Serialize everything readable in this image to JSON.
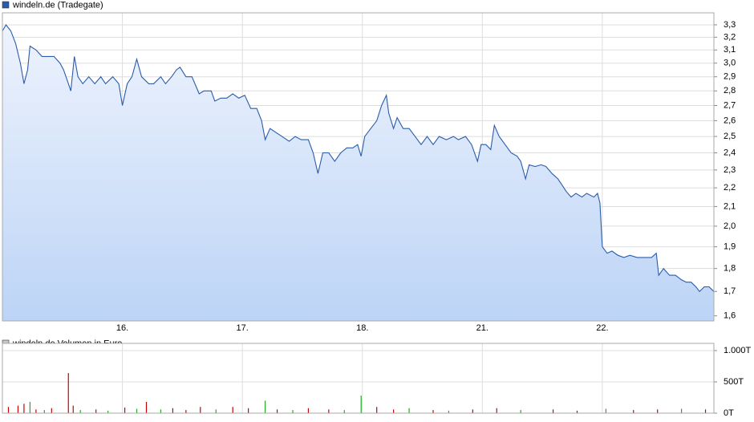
{
  "chart_data": [
    {
      "type": "area",
      "title": "windeln.de (Tradegate)",
      "color": "#2a5caa",
      "fill_top": "#eef3fd",
      "fill_bottom": "#bcd4f6",
      "log_scale": true,
      "grid": true,
      "xlim": [
        0,
        5.93
      ],
      "xticks": [
        {
          "value": 1,
          "label": "16."
        },
        {
          "value": 2,
          "label": "17."
        },
        {
          "value": 3,
          "label": "18."
        },
        {
          "value": 4,
          "label": "21."
        },
        {
          "value": 5,
          "label": "22."
        }
      ],
      "ylim": [
        1.58,
        3.4
      ],
      "yticks": [
        {
          "value": 1.6,
          "label": "1,6"
        },
        {
          "value": 1.7,
          "label": "1,7"
        },
        {
          "value": 1.8,
          "label": "1,8"
        },
        {
          "value": 1.9,
          "label": "1,9"
        },
        {
          "value": 2.0,
          "label": "2,0"
        },
        {
          "value": 2.1,
          "label": "2,1"
        },
        {
          "value": 2.2,
          "label": "2,2"
        },
        {
          "value": 2.3,
          "label": "2,3"
        },
        {
          "value": 2.4,
          "label": "2,4"
        },
        {
          "value": 2.5,
          "label": "2,5"
        },
        {
          "value": 2.6,
          "label": "2,6"
        },
        {
          "value": 2.7,
          "label": "2,7"
        },
        {
          "value": 2.8,
          "label": "2,8"
        },
        {
          "value": 2.9,
          "label": "2,9"
        },
        {
          "value": 3.0,
          "label": "3,0"
        },
        {
          "value": 3.1,
          "label": "3,1"
        },
        {
          "value": 3.2,
          "label": "3,2"
        },
        {
          "value": 3.3,
          "label": "3,3"
        }
      ],
      "x": [
        0.0,
        0.03,
        0.07,
        0.11,
        0.15,
        0.18,
        0.21,
        0.23,
        0.28,
        0.33,
        0.38,
        0.43,
        0.48,
        0.51,
        0.55,
        0.57,
        0.6,
        0.63,
        0.67,
        0.72,
        0.77,
        0.82,
        0.86,
        0.92,
        0.97,
        1.0,
        1.04,
        1.08,
        1.12,
        1.16,
        1.22,
        1.26,
        1.32,
        1.36,
        1.41,
        1.45,
        1.48,
        1.53,
        1.58,
        1.64,
        1.68,
        1.74,
        1.77,
        1.82,
        1.87,
        1.92,
        1.97,
        2.02,
        2.07,
        2.12,
        2.16,
        2.19,
        2.23,
        2.29,
        2.33,
        2.39,
        2.44,
        2.49,
        2.55,
        2.59,
        2.63,
        2.67,
        2.72,
        2.77,
        2.82,
        2.87,
        2.92,
        2.96,
        2.99,
        3.02,
        3.07,
        3.12,
        3.16,
        3.2,
        3.22,
        3.26,
        3.29,
        3.34,
        3.39,
        3.44,
        3.49,
        3.54,
        3.59,
        3.64,
        3.7,
        3.76,
        3.8,
        3.86,
        3.91,
        3.96,
        3.99,
        4.03,
        4.07,
        4.1,
        4.14,
        4.19,
        4.24,
        4.29,
        4.32,
        4.36,
        4.39,
        4.44,
        4.49,
        4.53,
        4.58,
        4.63,
        4.66,
        4.7,
        4.74,
        4.78,
        4.83,
        4.87,
        4.93,
        4.96,
        4.98,
        5.0,
        5.04,
        5.08,
        5.13,
        5.18,
        5.23,
        5.29,
        5.35,
        5.41,
        5.45,
        5.47,
        5.51,
        5.56,
        5.61,
        5.66,
        5.7,
        5.74,
        5.78,
        5.81,
        5.85,
        5.89,
        5.93
      ],
      "values": [
        3.25,
        3.3,
        3.25,
        3.15,
        3.0,
        2.85,
        2.95,
        3.13,
        3.1,
        3.05,
        3.05,
        3.05,
        3.0,
        2.95,
        2.85,
        2.8,
        3.05,
        2.9,
        2.85,
        2.9,
        2.85,
        2.9,
        2.85,
        2.9,
        2.85,
        2.7,
        2.85,
        2.9,
        3.03,
        2.9,
        2.85,
        2.85,
        2.9,
        2.85,
        2.9,
        2.95,
        2.97,
        2.9,
        2.9,
        2.78,
        2.8,
        2.8,
        2.73,
        2.75,
        2.75,
        2.78,
        2.75,
        2.77,
        2.68,
        2.68,
        2.6,
        2.48,
        2.55,
        2.52,
        2.5,
        2.47,
        2.5,
        2.48,
        2.48,
        2.4,
        2.28,
        2.4,
        2.4,
        2.35,
        2.4,
        2.43,
        2.43,
        2.45,
        2.38,
        2.5,
        2.55,
        2.6,
        2.7,
        2.77,
        2.65,
        2.55,
        2.62,
        2.55,
        2.55,
        2.5,
        2.45,
        2.5,
        2.45,
        2.5,
        2.48,
        2.5,
        2.48,
        2.5,
        2.45,
        2.35,
        2.45,
        2.45,
        2.42,
        2.57,
        2.5,
        2.45,
        2.4,
        2.38,
        2.35,
        2.25,
        2.33,
        2.32,
        2.33,
        2.32,
        2.28,
        2.25,
        2.22,
        2.18,
        2.15,
        2.17,
        2.15,
        2.17,
        2.15,
        2.17,
        2.12,
        1.9,
        1.87,
        1.88,
        1.86,
        1.85,
        1.86,
        1.85,
        1.85,
        1.85,
        1.87,
        1.77,
        1.8,
        1.77,
        1.77,
        1.75,
        1.74,
        1.74,
        1.72,
        1.7,
        1.72,
        1.72,
        1.7
      ]
    },
    {
      "type": "bar",
      "title": "windeln.de Volumen in Euro",
      "color": "#c8c8c8",
      "grid": true,
      "xlim": [
        0,
        5.93
      ],
      "ylim": [
        0,
        1115
      ],
      "yticks": [
        {
          "value": 0,
          "label": "0T"
        },
        {
          "value": 500,
          "label": "500T"
        },
        {
          "value": 1000,
          "label": "1.000T"
        }
      ],
      "x": [
        0.05,
        0.13,
        0.18,
        0.23,
        0.28,
        0.35,
        0.41,
        0.55,
        0.59,
        0.65,
        0.78,
        0.88,
        1.02,
        1.12,
        1.2,
        1.32,
        1.42,
        1.53,
        1.65,
        1.78,
        1.92,
        2.05,
        2.19,
        2.29,
        2.42,
        2.55,
        2.72,
        2.85,
        2.99,
        3.12,
        3.26,
        3.39,
        3.59,
        3.72,
        3.92,
        4.12,
        4.32,
        4.59,
        4.79,
        5.03,
        5.26,
        5.46,
        5.66,
        5.86
      ],
      "values": [
        100,
        120,
        150,
        180,
        60,
        50,
        80,
        640,
        120,
        50,
        60,
        40,
        90,
        70,
        180,
        60,
        80,
        50,
        100,
        60,
        100,
        80,
        200,
        60,
        50,
        80,
        60,
        50,
        280,
        100,
        60,
        80,
        50,
        40,
        60,
        80,
        50,
        60,
        40,
        70,
        50,
        60,
        70,
        60
      ],
      "bar_colors": [
        "#cc0000",
        "#cc0000",
        "#cc0000",
        "#22aa22",
        "#cc0000",
        "#22aa22",
        "#cc0000",
        "#cc0000",
        "#cc0000",
        "#22aa22",
        "#cc0000",
        "#22aa22",
        "#cc0000",
        "#22aa22",
        "#cc0000",
        "#22aa22",
        "#cc0000",
        "#cc0000",
        "#cc0000",
        "#22aa22",
        "#cc0000",
        "#cc0000",
        "#22aa22",
        "#cc0000",
        "#22aa22",
        "#cc0000",
        "#cc0000",
        "#22aa22",
        "#22aa22",
        "#cc0000",
        "#cc0000",
        "#22aa22",
        "#cc0000",
        "#22aa22",
        "#cc0000",
        "#cc0000",
        "#22aa22",
        "#cc0000",
        "#cc0000",
        "#22aa22",
        "#cc0000",
        "#cc0000",
        "#22aa22",
        "#cc0000"
      ]
    }
  ]
}
